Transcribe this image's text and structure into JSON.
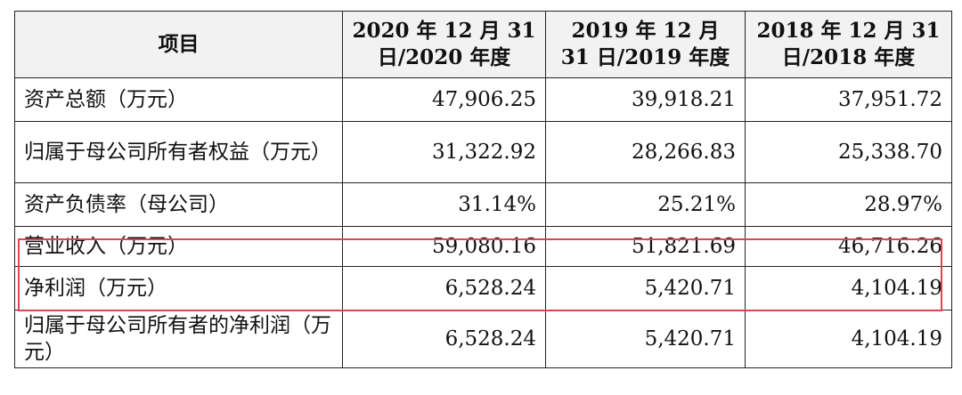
{
  "header": {
    "item": "项目",
    "col1": "2020 年 12 月 31 日/2020 年度",
    "col2": "2019 年 12 月 31 日/2019 年度",
    "col3": "2018 年 12 月 31 日/2018 年度"
  },
  "rows": [
    {
      "label": "资产总额（万元）",
      "v2020": "47,906.25",
      "v2019": "39,918.21",
      "v2018": "37,951.72"
    },
    {
      "label": "归属于母公司所有者权益（万元）",
      "v2020": "31,322.92",
      "v2019": "28,266.83",
      "v2018": "25,338.70"
    },
    {
      "label": "资产负债率（母公司）",
      "v2020": "31.14%",
      "v2019": "25.21%",
      "v2018": "28.97%"
    },
    {
      "label": "营业收入（万元）",
      "v2020": "59,080.16",
      "v2019": "51,821.69",
      "v2018": "46,716.26"
    },
    {
      "label": "净利润（万元）",
      "v2020": "6,528.24",
      "v2019": "5,420.71",
      "v2018": "4,104.19"
    },
    {
      "label": "归属于母公司所有者的净利润（万元）",
      "v2020": "6,528.24",
      "v2019": "5,420.71",
      "v2018": "4,104.19"
    }
  ],
  "highlight_color": "#d8484e"
}
